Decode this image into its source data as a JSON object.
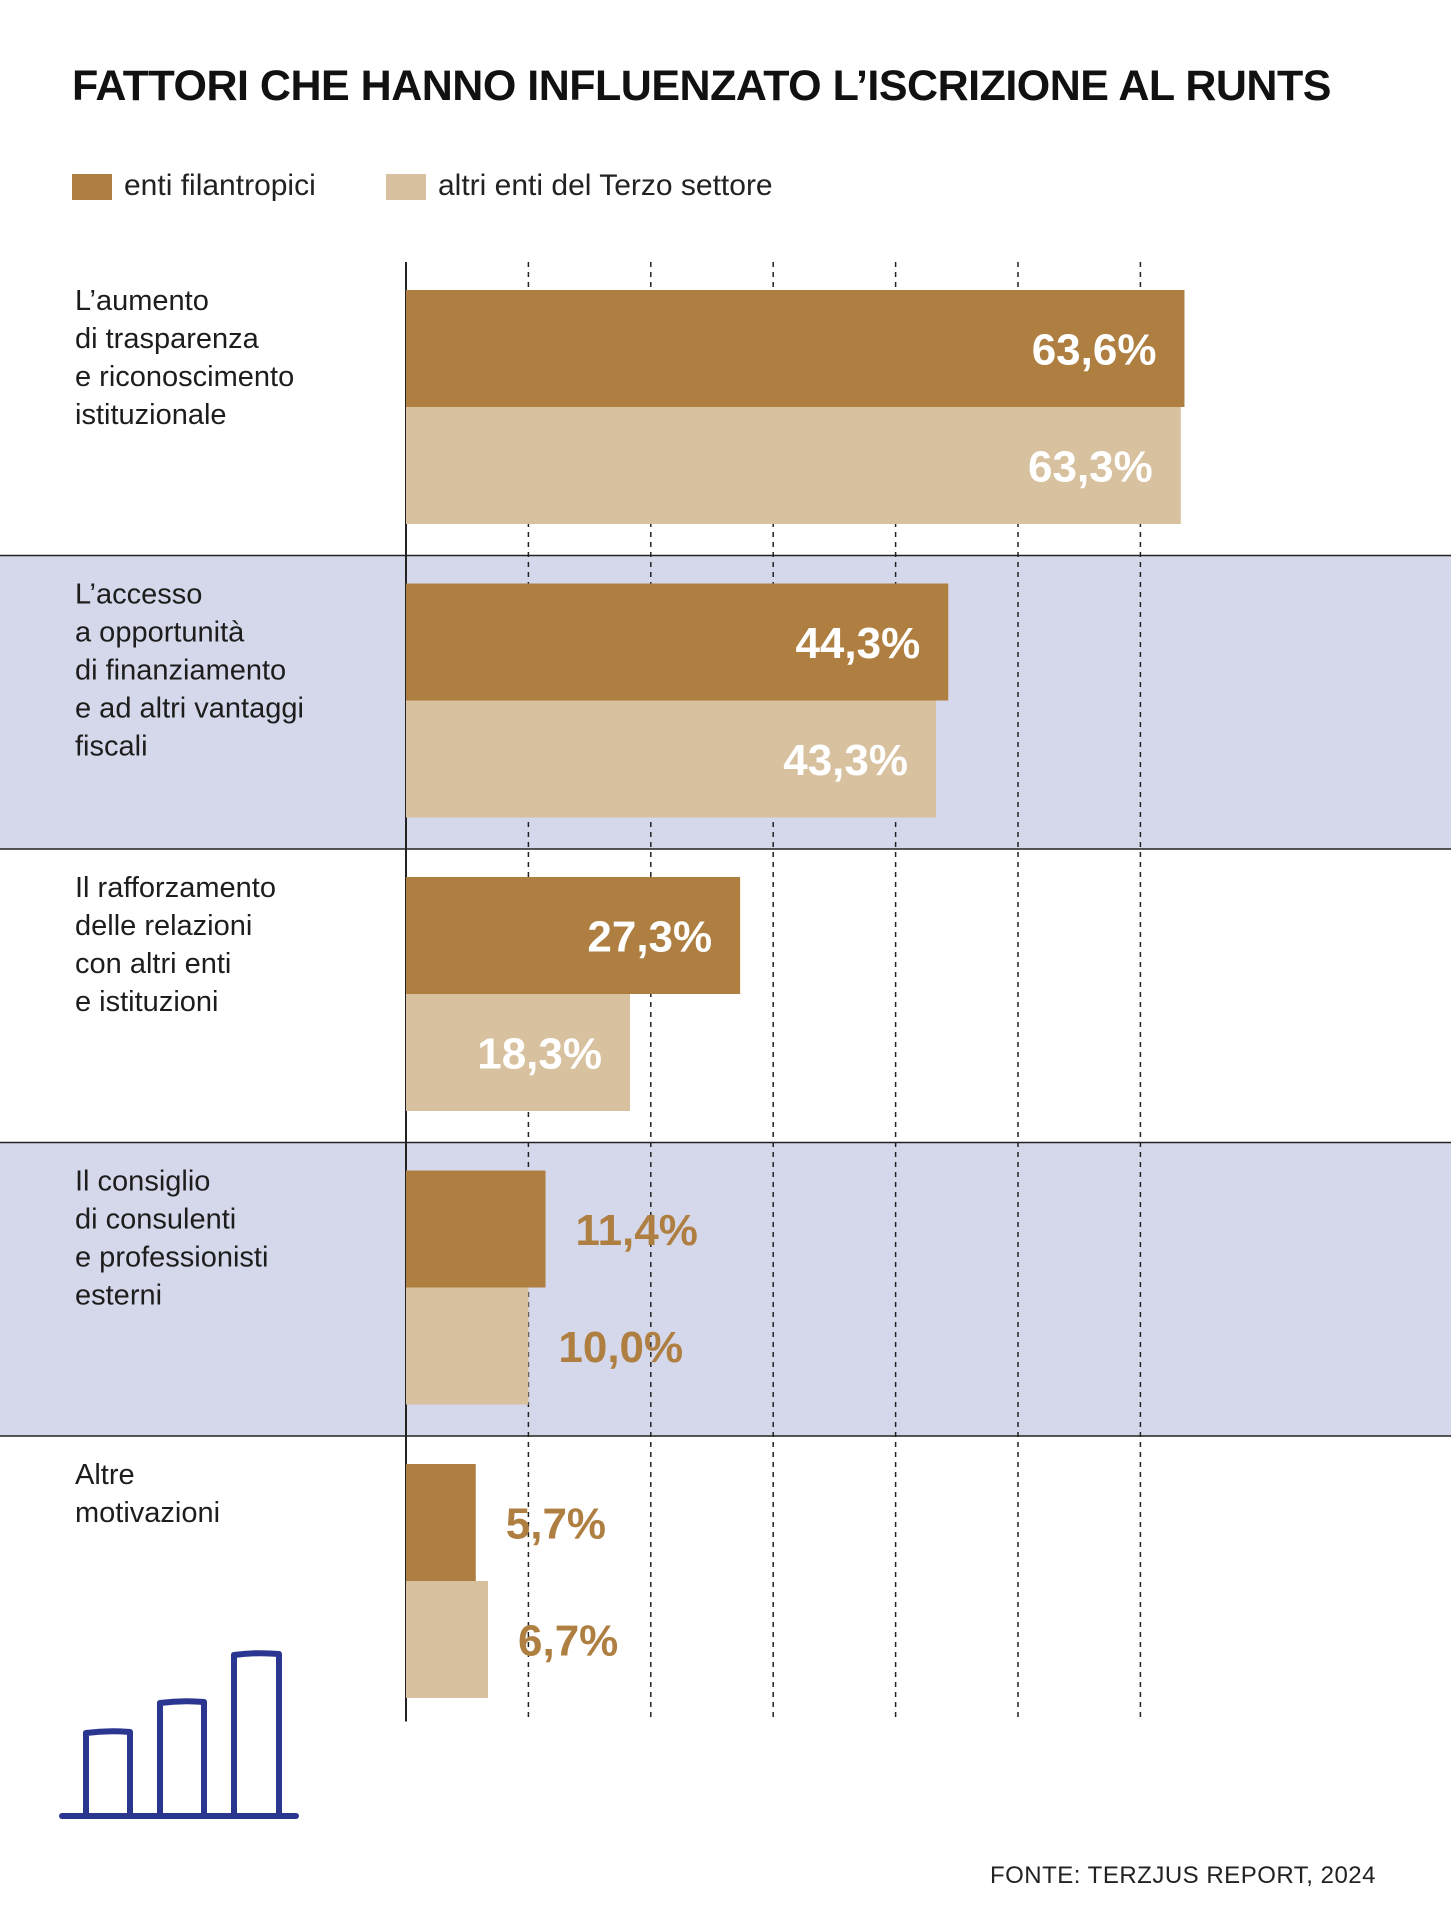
{
  "title": "FATTORI CHE HANNO INFLUENZATO L’ISCRIZIONE AL RUNTS",
  "source": "FONTE: TERZJUS REPORT, 2024",
  "colors": {
    "enti_filantropici": "#AE7F41",
    "altri_enti": "#D8C19F",
    "band": "#D5D8EA",
    "axis": "#222222",
    "value_inside": "#FFFFFF",
    "value_outside": "#AE7F41",
    "icon": "#2B3690"
  },
  "decorative_icon": "bar-chart-icon",
  "chart_data": {
    "type": "bar",
    "orientation": "horizontal",
    "title": "FATTORI CHE HANNO INFLUENZATO L’ISCRIZIONE AL RUNTS",
    "unit": "%",
    "xlim": [
      0,
      70
    ],
    "grid": "vertical dashed",
    "legend_position": "top-left",
    "categories": [
      [
        "L’aumento",
        "di trasparenza",
        "e riconoscimento",
        "istituzionale"
      ],
      [
        "L’accesso",
        "a opportunità",
        "di finanziamento",
        "e ad altri vantaggi",
        "fiscali"
      ],
      [
        "Il rafforzamento",
        "delle relazioni",
        "con altri enti",
        "e istituzioni"
      ],
      [
        "Il consiglio",
        "di consulenti",
        "e professionisti",
        "esterni"
      ],
      [
        "Altre",
        "motivazioni"
      ]
    ],
    "series": [
      {
        "name": "enti filantropici",
        "values": [
          63.6,
          44.3,
          27.3,
          11.4,
          5.7
        ],
        "labels": [
          "63,6%",
          "44,3%",
          "27,3%",
          "11,4%",
          "5,7%"
        ]
      },
      {
        "name": "altri enti del Terzo settore",
        "values": [
          63.3,
          43.3,
          18.3,
          10.0,
          6.7
        ],
        "labels": [
          "63,3%",
          "43,3%",
          "18,3%",
          "10,0%",
          "6,7%"
        ]
      }
    ]
  }
}
